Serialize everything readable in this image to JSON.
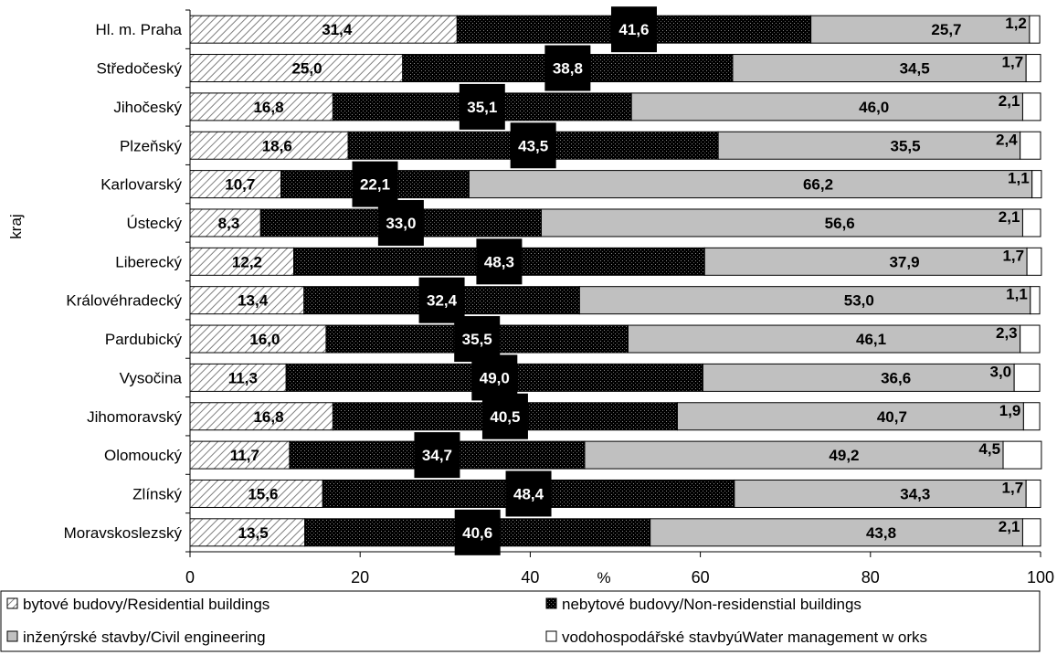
{
  "chart_data": {
    "type": "bar",
    "orientation": "horizontal",
    "stacked": true,
    "categories": [
      "Hl. m. Praha",
      "Středočeský",
      "Jihočeský",
      "Plzeňský",
      "Karlovarský",
      "Ústecký",
      "Liberecký",
      "Královéhradecký",
      "Pardubický",
      "Vysočina",
      "Jihomoravský",
      "Olomoucký",
      "Zlínský",
      "Moravskoslezský"
    ],
    "series": [
      {
        "name": "bytové budovy/Residential buildings",
        "values": [
          31.4,
          25.0,
          16.8,
          18.6,
          10.7,
          8.3,
          12.2,
          13.4,
          16.0,
          11.3,
          16.8,
          11.7,
          15.6,
          13.5
        ],
        "labels": [
          "31,4",
          "25,0",
          "16,8",
          "18,6",
          "10,7",
          "8,3",
          "12,2",
          "13,4",
          "16,0",
          "11,3",
          "16,8",
          "11,7",
          "15,6",
          "13,5"
        ],
        "pattern": "hatch"
      },
      {
        "name": "nebytové budovy/Non-residenstial buildings",
        "values": [
          41.6,
          38.8,
          35.1,
          43.5,
          22.1,
          33.0,
          48.3,
          32.4,
          35.5,
          49.0,
          40.5,
          34.7,
          48.4,
          40.6
        ],
        "labels": [
          "41,6",
          "38,8",
          "35,1",
          "43,5",
          "22,1",
          "33,0",
          "48,3",
          "32,4",
          "35,5",
          "49,0",
          "40,5",
          "34,7",
          "48,4",
          "40,6"
        ],
        "pattern": "dots"
      },
      {
        "name": "inženýrské stavby/Civil engineering",
        "values": [
          25.7,
          34.5,
          46.0,
          35.5,
          66.2,
          56.6,
          37.9,
          53.0,
          46.1,
          36.6,
          40.7,
          49.2,
          34.3,
          43.8
        ],
        "labels": [
          "25,7",
          "34,5",
          "46,0",
          "35,5",
          "66,2",
          "56,6",
          "37,9",
          "53,0",
          "46,1",
          "36,6",
          "40,7",
          "49,2",
          "34,3",
          "43,8"
        ],
        "color": "#c0c0c0"
      },
      {
        "name": "vodohospodářské stavbyúWater management w orks",
        "values": [
          1.2,
          1.7,
          2.1,
          2.4,
          1.1,
          2.1,
          1.7,
          1.1,
          2.3,
          3.0,
          1.9,
          4.5,
          1.7,
          2.1
        ],
        "labels": [
          "1,2",
          "1,7",
          "2,1",
          "2,4",
          "1,1",
          "2,1",
          "1,7",
          "1,1",
          "2,3",
          "3,0",
          "1,9",
          "4,5",
          "1,7",
          "2,1"
        ],
        "color": "#ffffff"
      }
    ],
    "xlabel": "%",
    "ylabel": "kraj",
    "xlim": [
      0,
      100
    ],
    "xticks": [
      "0",
      "20",
      "40",
      "60",
      "80",
      "100"
    ],
    "grid": false,
    "legend_position": "bottom"
  }
}
